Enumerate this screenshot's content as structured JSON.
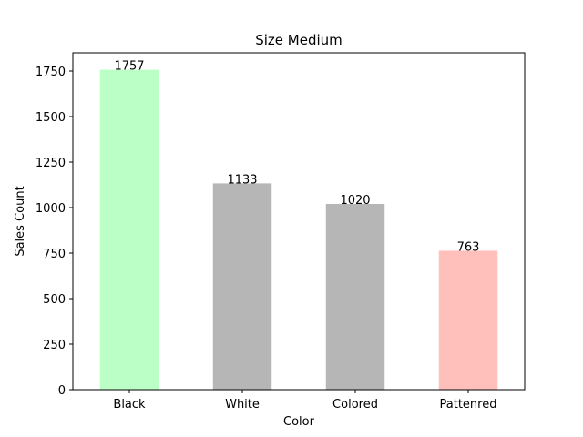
{
  "chart_data": {
    "type": "bar",
    "title": "Size Medium",
    "xlabel": "Color",
    "ylabel": "Sales Count",
    "categories": [
      "Black",
      "White",
      "Colored",
      "Pattenred"
    ],
    "values": [
      1757,
      1133,
      1020,
      763
    ],
    "data_labels": [
      "1757",
      "1133",
      "1020",
      "763"
    ],
    "bar_colors": [
      "#bbffc6",
      "#b7b6b6",
      "#b7b6b6",
      "#ffc0bb"
    ],
    "ylim": [
      0,
      1850
    ],
    "yticks": [
      0,
      250,
      500,
      750,
      1000,
      1250,
      1500,
      1750
    ],
    "ytick_labels": [
      "0",
      "250",
      "500",
      "750",
      "1000",
      "1250",
      "1500",
      "1750"
    ],
    "grid": false,
    "legend": "none"
  }
}
